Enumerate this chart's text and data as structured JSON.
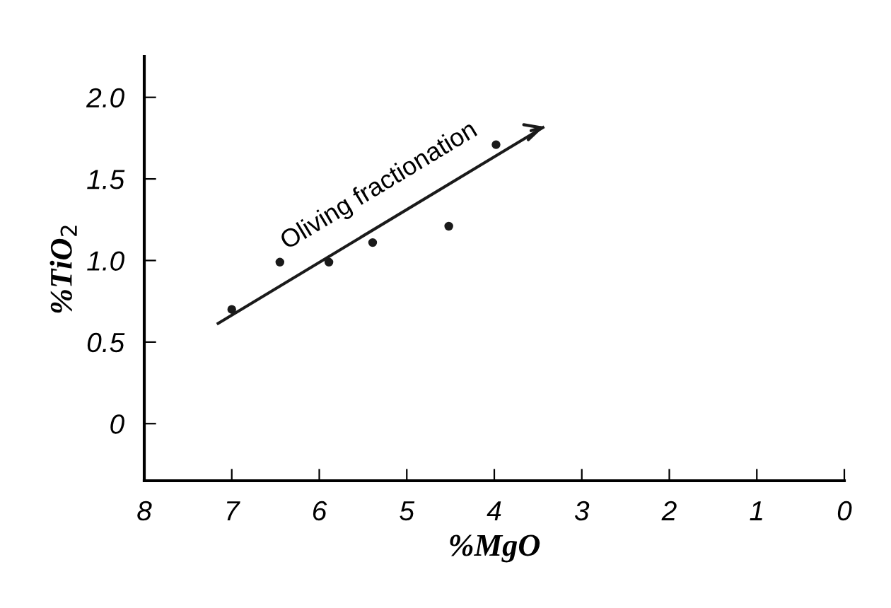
{
  "chart_data": {
    "type": "scatter",
    "xlabel": "%MgO",
    "ylabel": "%TiO$_{2}$",
    "x": [
      7.0,
      6.45,
      5.89,
      5.39,
      4.52,
      3.98
    ],
    "series": [
      {
        "color": "#1a1a1a",
        "marker": "circle",
        "values": [
          0.7,
          0.99,
          0.99,
          1.11,
          1.21,
          1.71
        ]
      },
      {
        "type": "line",
        "color": "#1a1a1a",
        "marker": "none",
        "x": [
          7.17,
          3.43
        ],
        "values": [
          0.61,
          1.82
        ]
      }
    ],
    "annotations": [
      "Oliving fractionation"
    ],
    "xlim": [
      8,
      0
    ],
    "xticks": [
      8,
      7,
      6,
      5,
      4,
      3,
      2,
      1,
      0
    ],
    "ylim": [
      -0.35,
      2.25
    ],
    "yticks": [
      0,
      0.5,
      {
        "value": 1.0,
        "label": "1.0"
      },
      1.5,
      {
        "value": 2.0,
        "label": "2.0"
      }
    ],
    "grid": false,
    "legend": false
  }
}
